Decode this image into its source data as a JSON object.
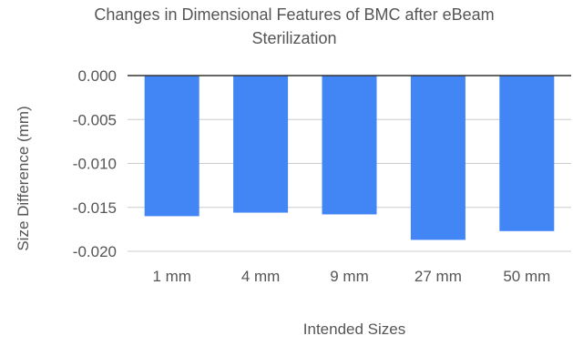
{
  "chart_data": {
    "type": "bar",
    "title": "Changes in Dimensional Features of BMC after eBeam Sterilization",
    "title_lines": [
      "Changes in Dimensional Features of BMC after eBeam",
      "Sterilization"
    ],
    "xlabel": "Intended Sizes",
    "ylabel": "Size Difference (mm)",
    "categories": [
      "1 mm",
      "4 mm",
      "9 mm",
      "27 mm",
      "50 mm"
    ],
    "values": [
      -0.016,
      -0.0156,
      -0.0158,
      -0.0187,
      -0.0177
    ],
    "ylim": [
      -0.0205,
      0.0
    ],
    "yticks": [
      0.0,
      -0.005,
      -0.01,
      -0.015,
      -0.02
    ],
    "ytick_labels": [
      "0.000",
      "-0.005",
      "-0.010",
      "-0.015",
      "-0.020"
    ],
    "grid": true,
    "legend": "none",
    "bar_color": "#4285f4",
    "grid_color": "#cccccc",
    "zero_line_color": "#333333",
    "text_color": "#555555"
  }
}
